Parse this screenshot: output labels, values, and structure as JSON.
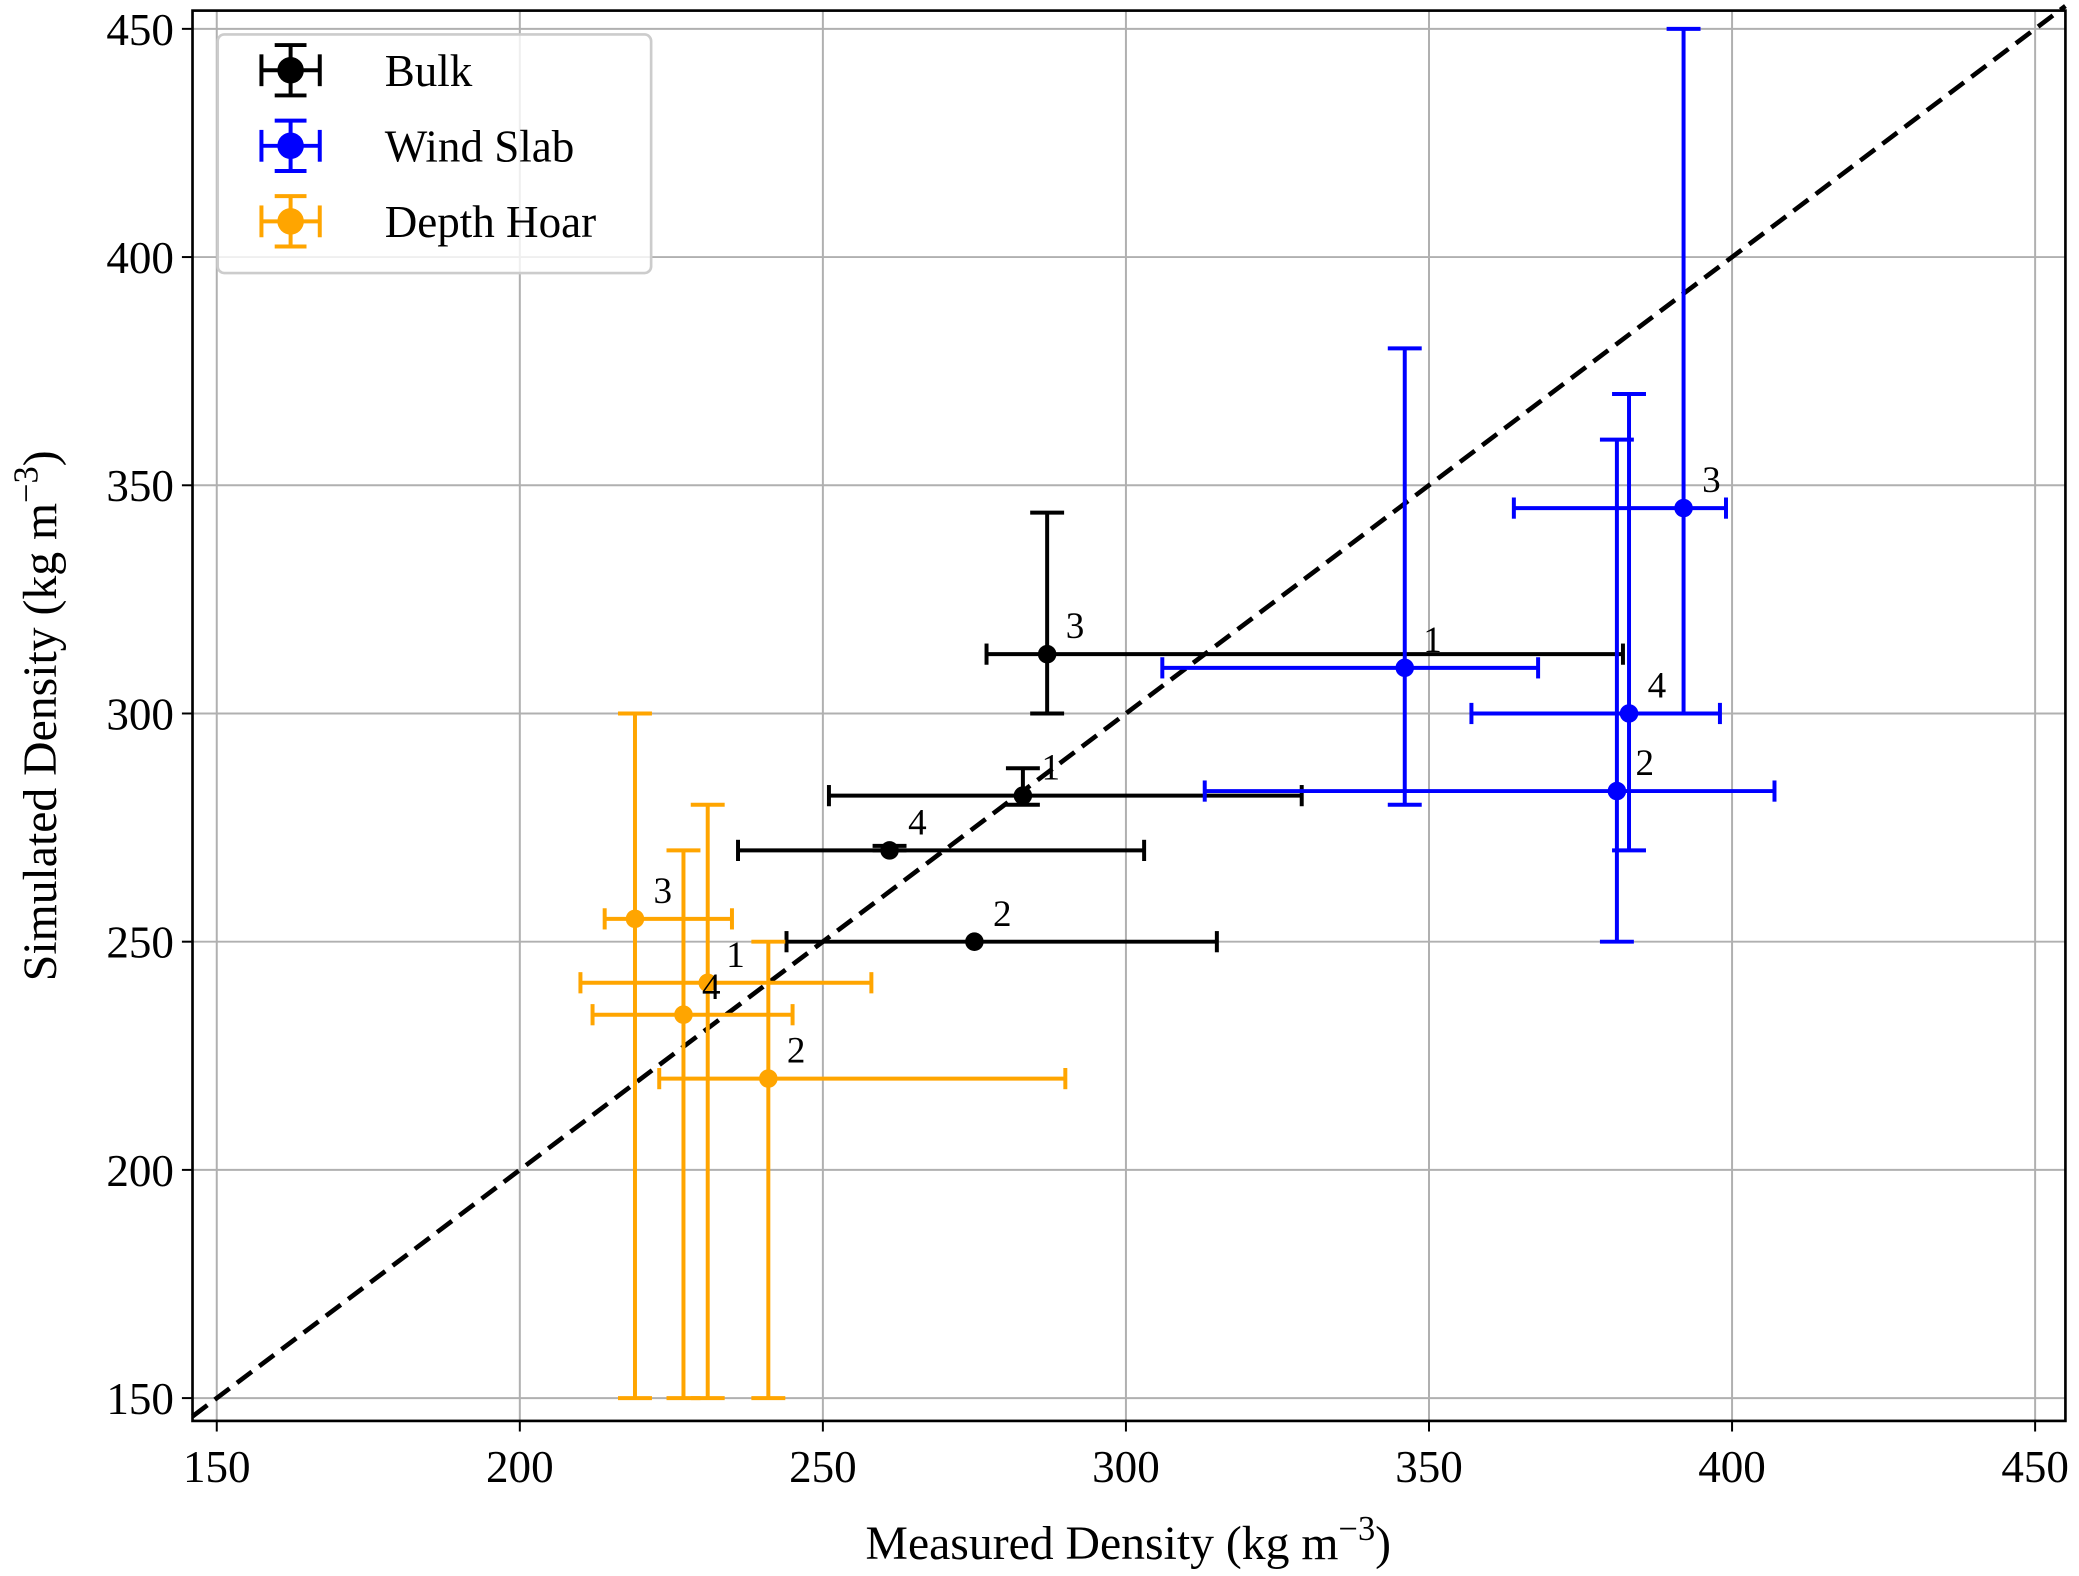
{
  "chart_data": {
    "type": "scatter",
    "xlabel": "Measured Density (kg m",
    "ylabel": "Simulated Density (kg m",
    "unit_exponent": "−3",
    "label_close": ")",
    "xlim": [
      146,
      455
    ],
    "ylim": [
      145,
      454
    ],
    "xticks": [
      150,
      200,
      250,
      300,
      350,
      400,
      450
    ],
    "yticks": [
      150,
      200,
      250,
      300,
      350,
      400,
      450
    ],
    "grid": true,
    "legend_position": "top-left",
    "reference_line": {
      "style": "dashed",
      "color": "#000000",
      "from": [
        146,
        146
      ],
      "to": [
        455,
        455
      ]
    },
    "series": [
      {
        "name": "Bulk",
        "color": "#000000",
        "points": [
          {
            "label": "1",
            "x": 283,
            "y": 282,
            "xerr": [
              251,
              329
            ],
            "yerr": [
              280,
              288
            ]
          },
          {
            "label": "2",
            "x": 275,
            "y": 250,
            "xerr": [
              244,
              315
            ],
            "yerr": [
              250,
              250
            ]
          },
          {
            "label": "3",
            "x": 287,
            "y": 313,
            "xerr": [
              277,
              382
            ],
            "yerr": [
              300,
              344
            ]
          },
          {
            "label": "4",
            "x": 261,
            "y": 270,
            "xerr": [
              236,
              303
            ],
            "yerr": [
              270,
              271
            ]
          }
        ]
      },
      {
        "name": "Wind Slab",
        "color": "#0000ff",
        "points": [
          {
            "label": "1",
            "x": 346,
            "y": 310,
            "xerr": [
              306,
              368
            ],
            "yerr": [
              280,
              380
            ]
          },
          {
            "label": "2",
            "x": 381,
            "y": 283,
            "xerr": [
              313,
              407
            ],
            "yerr": [
              250,
              360
            ]
          },
          {
            "label": "3",
            "x": 392,
            "y": 345,
            "xerr": [
              364,
              399
            ],
            "yerr": [
              300,
              450
            ]
          },
          {
            "label": "4",
            "x": 383,
            "y": 300,
            "xerr": [
              357,
              398
            ],
            "yerr": [
              270,
              370
            ]
          }
        ]
      },
      {
        "name": "Depth Hoar",
        "color": "#ffa500",
        "points": [
          {
            "label": "1",
            "x": 231,
            "y": 241,
            "xerr": [
              210,
              258
            ],
            "yerr": [
              150,
              280
            ]
          },
          {
            "label": "2",
            "x": 241,
            "y": 220,
            "xerr": [
              223,
              290
            ],
            "yerr": [
              150,
              250
            ]
          },
          {
            "label": "3",
            "x": 219,
            "y": 255,
            "xerr": [
              214,
              235
            ],
            "yerr": [
              150,
              300
            ]
          },
          {
            "label": "4",
            "x": 227,
            "y": 234,
            "xerr": [
              212,
              245
            ],
            "yerr": [
              150,
              270
            ]
          }
        ]
      }
    ]
  }
}
